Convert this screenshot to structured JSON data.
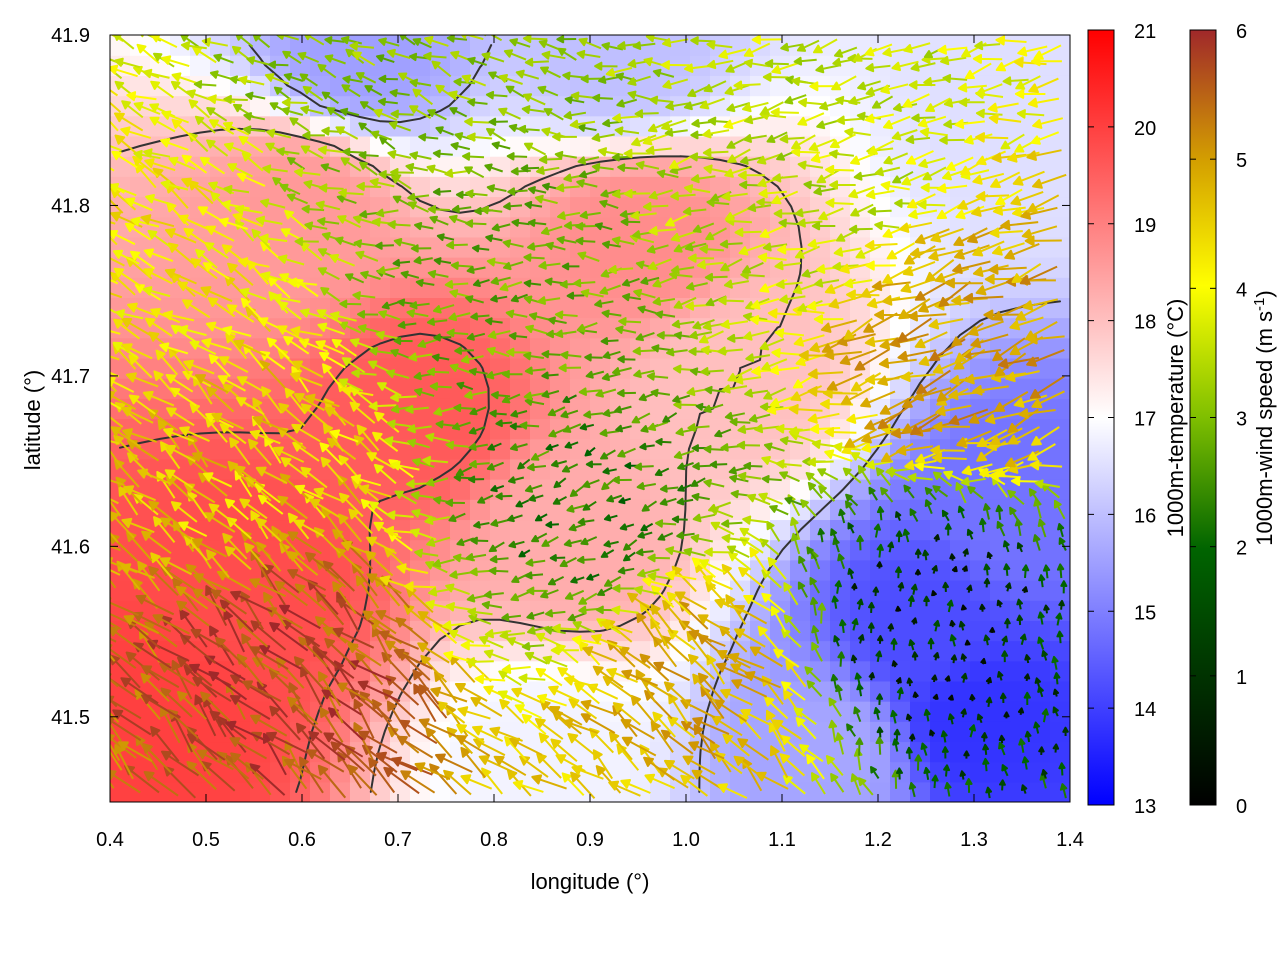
{
  "chart_data": {
    "type": "heatmap",
    "overlay": "wind vectors + contour lines",
    "xlabel": "longitude (°)",
    "ylabel": "latitude (°)",
    "xlim": [
      0.4,
      1.4
    ],
    "ylim": [
      41.45,
      41.9
    ],
    "xticks": [
      "0.4",
      "0.5",
      "0.6",
      "0.7",
      "0.8",
      "0.9",
      "1.0",
      "1.1",
      "1.2",
      "1.3",
      "1.4"
    ],
    "yticks": [
      "41.5",
      "41.6",
      "41.7",
      "41.8",
      "41.9"
    ],
    "grid": false,
    "temperature_colorbar": {
      "label": "1000m-temperature (°C)",
      "range": [
        13,
        21
      ],
      "ticks": [
        "13",
        "14",
        "15",
        "16",
        "17",
        "18",
        "19",
        "20",
        "21"
      ],
      "colors": [
        "#0000ff",
        "#ffffff",
        "#ff0000"
      ]
    },
    "wind_colorbar": {
      "label": "1000m-wind speed (m s",
      "label_sup": "-1",
      "label_end": ")",
      "range": [
        0,
        6
      ],
      "ticks": [
        "0",
        "1",
        "2",
        "3",
        "4",
        "5",
        "6"
      ],
      "colors": [
        "#000000",
        "#006400",
        "#7fbf00",
        "#ffff00",
        "#d4a000",
        "#a0282a"
      ]
    },
    "temperature_regions": [
      {
        "lon": 0.55,
        "lat": 41.58,
        "temp": 19.8
      },
      {
        "lon": 0.45,
        "lat": 41.5,
        "temp": 20.0
      },
      {
        "lon": 0.72,
        "lat": 41.68,
        "temp": 19.6
      },
      {
        "lon": 0.95,
        "lat": 41.78,
        "temp": 18.8
      },
      {
        "lon": 0.6,
        "lat": 41.8,
        "temp": 18.6
      },
      {
        "lon": 0.88,
        "lat": 41.6,
        "temp": 18.3
      },
      {
        "lon": 1.05,
        "lat": 41.7,
        "temp": 18.0
      },
      {
        "lon": 1.25,
        "lat": 41.55,
        "temp": 14.2
      },
      {
        "lon": 1.3,
        "lat": 41.5,
        "temp": 13.8
      },
      {
        "lon": 1.35,
        "lat": 41.62,
        "temp": 14.8
      },
      {
        "lon": 0.66,
        "lat": 41.89,
        "temp": 15.5
      },
      {
        "lon": 0.93,
        "lat": 41.89,
        "temp": 16.0
      },
      {
        "lon": 1.36,
        "lat": 41.85,
        "temp": 16.5
      },
      {
        "lon": 0.85,
        "lat": 41.48,
        "temp": 16.8
      },
      {
        "lon": 1.15,
        "lat": 41.48,
        "temp": 15.6
      }
    ],
    "wind_regions": [
      {
        "lon": 0.6,
        "lat": 41.52,
        "speed": 5.6,
        "dir": 135
      },
      {
        "lon": 0.55,
        "lat": 41.65,
        "speed": 4.2,
        "dir": 140
      },
      {
        "lon": 0.45,
        "lat": 41.75,
        "speed": 3.8,
        "dir": 150
      },
      {
        "lon": 0.8,
        "lat": 41.75,
        "speed": 2.2,
        "dir": 180
      },
      {
        "lon": 0.9,
        "lat": 41.62,
        "speed": 1.6,
        "dir": 200
      },
      {
        "lon": 1.02,
        "lat": 41.52,
        "speed": 4.6,
        "dir": 140
      },
      {
        "lon": 1.25,
        "lat": 41.55,
        "speed": 0.6,
        "dir": 90
      },
      {
        "lon": 1.3,
        "lat": 41.72,
        "speed": 4.8,
        "dir": 200
      },
      {
        "lon": 1.15,
        "lat": 41.82,
        "speed": 3.0,
        "dir": 190
      },
      {
        "lon": 0.7,
        "lat": 41.87,
        "speed": 2.5,
        "dir": 160
      }
    ]
  }
}
